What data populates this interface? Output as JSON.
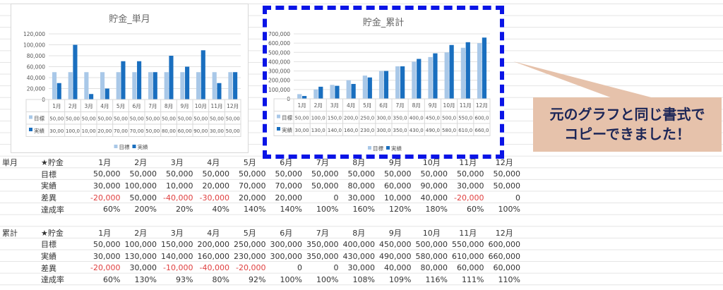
{
  "months": [
    "1月",
    "2月",
    "3月",
    "4月",
    "5月",
    "6月",
    "7月",
    "8月",
    "9月",
    "10月",
    "11月",
    "12月"
  ],
  "colors": {
    "target": "#a9c8e8",
    "actual": "#1a6fbf",
    "negative": "#e04040",
    "callout_bg": "#e6c2ab",
    "callout_text": "#1c2657",
    "selection_border": "#0a14e6"
  },
  "chart_data": [
    {
      "type": "bar",
      "title": "貯金_単月",
      "categories": [
        "1月",
        "2月",
        "3月",
        "4月",
        "5月",
        "6月",
        "7月",
        "8月",
        "9月",
        "10月",
        "11月",
        "12月"
      ],
      "ylim": [
        0,
        120000
      ],
      "yticks": [
        "0",
        "20,000",
        "40,000",
        "60,000",
        "80,000",
        "100,000",
        "120,000"
      ],
      "grid": true,
      "legend": "bottom",
      "series": [
        {
          "name": "目標",
          "values": [
            50000,
            50000,
            50000,
            50000,
            50000,
            50000,
            50000,
            50000,
            50000,
            50000,
            50000,
            50000
          ],
          "table_labels": [
            "50,00",
            "50,00",
            "50,00",
            "50,00",
            "50,00",
            "50,00",
            "50,00",
            "50,00",
            "50,00",
            "50,00",
            "50,00",
            "50,00"
          ]
        },
        {
          "name": "実績",
          "values": [
            30000,
            100000,
            10000,
            20000,
            70000,
            70000,
            50000,
            80000,
            60000,
            90000,
            30000,
            50000
          ],
          "table_labels": [
            "30,00",
            "100,0",
            "10,00",
            "20,00",
            "70,00",
            "70,00",
            "50,00",
            "80,00",
            "60,00",
            "90,00",
            "30,00",
            "50,00"
          ]
        }
      ]
    },
    {
      "type": "bar",
      "title": "貯金_累計",
      "categories": [
        "1月",
        "2月",
        "3月",
        "4月",
        "5月",
        "6月",
        "7月",
        "8月",
        "9月",
        "10月",
        "11月",
        "12月"
      ],
      "ylim": [
        0,
        700000
      ],
      "yticks": [
        "0",
        "100,000",
        "200,000",
        "300,000",
        "400,000",
        "500,000",
        "600,000",
        "700,000"
      ],
      "grid": true,
      "legend": "bottom",
      "series": [
        {
          "name": "目標",
          "values": [
            50000,
            100000,
            150000,
            200000,
            250000,
            300000,
            350000,
            400000,
            450000,
            500000,
            550000,
            600000
          ],
          "table_labels": [
            "50,00",
            "100,0",
            "150,0",
            "200,0",
            "250,0",
            "300,0",
            "350,0",
            "400,0",
            "450,0",
            "500,0",
            "550,0",
            "600,0"
          ]
        },
        {
          "name": "実績",
          "values": [
            30000,
            130000,
            140000,
            160000,
            230000,
            300000,
            350000,
            430000,
            490000,
            580000,
            610000,
            660000
          ],
          "table_labels": [
            "30,00",
            "130,0",
            "140,0",
            "160,0",
            "230,0",
            "300,0",
            "350,0",
            "430,0",
            "490,0",
            "580,0",
            "610,0",
            "660,0"
          ]
        }
      ]
    }
  ],
  "sheet": {
    "header_label": "★貯金",
    "sections": [
      {
        "label": "単月",
        "rows": [
          {
            "label": "目標",
            "values": [
              "50,000",
              "50,000",
              "50,000",
              "50,000",
              "50,000",
              "50,000",
              "50,000",
              "50,000",
              "50,000",
              "50,000",
              "50,000",
              "50,000"
            ]
          },
          {
            "label": "実績",
            "values": [
              "30,000",
              "100,000",
              "10,000",
              "20,000",
              "70,000",
              "70,000",
              "50,000",
              "80,000",
              "60,000",
              "90,000",
              "30,000",
              "50,000"
            ]
          },
          {
            "label": "差異",
            "values": [
              "-20,000",
              "50,000",
              "-40,000",
              "-30,000",
              "20,000",
              "20,000",
              "0",
              "30,000",
              "10,000",
              "40,000",
              "-20,000",
              "0"
            ]
          },
          {
            "label": "達成率",
            "values": [
              "60%",
              "200%",
              "20%",
              "40%",
              "140%",
              "140%",
              "100%",
              "160%",
              "120%",
              "180%",
              "60%",
              "100%"
            ]
          }
        ]
      },
      {
        "label": "累計",
        "rows": [
          {
            "label": "目標",
            "values": [
              "50,000",
              "100,000",
              "150,000",
              "200,000",
              "250,000",
              "300,000",
              "350,000",
              "400,000",
              "450,000",
              "500,000",
              "550,000",
              "600,000"
            ]
          },
          {
            "label": "実績",
            "values": [
              "30,000",
              "130,000",
              "140,000",
              "160,000",
              "230,000",
              "300,000",
              "350,000",
              "430,000",
              "490,000",
              "580,000",
              "610,000",
              "660,000"
            ]
          },
          {
            "label": "差異",
            "values": [
              "-20,000",
              "30,000",
              "-10,000",
              "-40,000",
              "-20,000",
              "0",
              "0",
              "30,000",
              "40,000",
              "80,000",
              "60,000",
              "60,000"
            ]
          },
          {
            "label": "達成率",
            "values": [
              "60%",
              "130%",
              "93%",
              "80%",
              "92%",
              "100%",
              "100%",
              "108%",
              "109%",
              "116%",
              "111%",
              "110%"
            ]
          }
        ]
      }
    ]
  },
  "callout": {
    "line1": "元のグラフと同じ書式で",
    "line2": "コピーできました！"
  }
}
